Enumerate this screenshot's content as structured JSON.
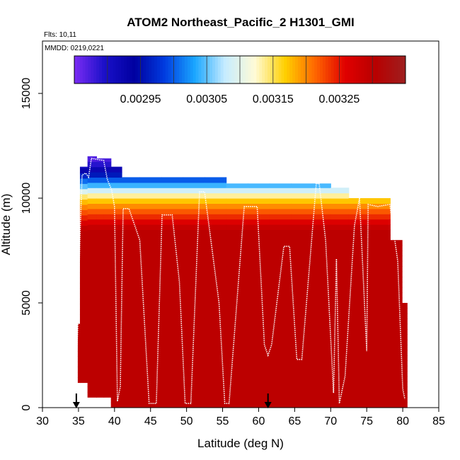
{
  "chart_data": {
    "type": "heatmap",
    "title": "ATOM2 Northeast_Pacific_2 H1301_GMI",
    "subtitle_flights": "Flts: 10,11",
    "subtitle_dates": "MMDD: 0219,0221",
    "xlabel": "Latitude (deg N)",
    "ylabel": "Altitude (m)",
    "xlim": [
      30,
      85
    ],
    "ylim": [
      0,
      17500
    ],
    "x_ticks": [
      "30",
      "35",
      "40",
      "45",
      "50",
      "55",
      "60",
      "65",
      "70",
      "75",
      "80",
      "85"
    ],
    "y_ticks": [
      "0",
      "5000",
      "10000",
      "15000"
    ],
    "colorbar": {
      "min": 0.00285,
      "max": 0.00335,
      "tick_labels": [
        "0.00295",
        "0.00305",
        "0.00315",
        "0.00325"
      ],
      "tick_values": [
        0.00295,
        0.00305,
        0.00315,
        0.00325
      ],
      "colors": [
        "#7b2cf4",
        "#1a10c8",
        "#0000a0",
        "#003ce0",
        "#1aa6ff",
        "#c6ecff",
        "#fffbd6",
        "#ffd000",
        "#ff6600",
        "#e00000",
        "#b80000",
        "#9e1f1f"
      ]
    },
    "columns": [
      {
        "lat": 34.9,
        "bottom": 1200,
        "top": 4000
      },
      {
        "lat": 35.5,
        "bottom": 1200,
        "top": 11500
      },
      {
        "lat": 37.0,
        "bottom": 500,
        "top": 12000
      },
      {
        "lat": 38.0,
        "bottom": 500,
        "top": 11900
      },
      {
        "lat": 39.0,
        "bottom": 500,
        "top": 11900
      },
      {
        "lat": 40.0,
        "bottom": 0,
        "top": 11500
      },
      {
        "lat": 42.0,
        "bottom": 0,
        "top": 11000
      },
      {
        "lat": 45.0,
        "bottom": 0,
        "top": 11000
      },
      {
        "lat": 48.0,
        "bottom": 0,
        "top": 11000
      },
      {
        "lat": 51.0,
        "bottom": 0,
        "top": 11000
      },
      {
        "lat": 54.0,
        "bottom": 0,
        "top": 11000
      },
      {
        "lat": 57.0,
        "bottom": 0,
        "top": 10700
      },
      {
        "lat": 60.0,
        "bottom": 0,
        "top": 10700
      },
      {
        "lat": 63.0,
        "bottom": 0,
        "top": 10700
      },
      {
        "lat": 66.0,
        "bottom": 0,
        "top": 10700
      },
      {
        "lat": 69.0,
        "bottom": 0,
        "top": 10700
      },
      {
        "lat": 71.0,
        "bottom": 0,
        "top": 10500
      },
      {
        "lat": 74.0,
        "bottom": 0,
        "top": 10000
      },
      {
        "lat": 77.0,
        "bottom": 0,
        "top": 10000
      },
      {
        "lat": 79.5,
        "bottom": 0,
        "top": 8000
      },
      {
        "lat": 80.3,
        "bottom": 0,
        "top": 5000
      }
    ],
    "profile_levels": [
      {
        "altitude": 0,
        "value": 0.0033
      },
      {
        "altitude": 8500,
        "value": 0.0033
      },
      {
        "altitude": 9000,
        "value": 0.00325
      },
      {
        "altitude": 9500,
        "value": 0.00321
      },
      {
        "altitude": 10000,
        "value": 0.00316
      },
      {
        "altitude": 10500,
        "value": 0.00306
      },
      {
        "altitude": 11000,
        "value": 0.00298
      },
      {
        "altitude": 11500,
        "value": 0.0029
      },
      {
        "altitude": 12000,
        "value": 0.00286
      }
    ],
    "flight_track": [
      [
        34.6,
        1200
      ],
      [
        34.9,
        3800
      ],
      [
        35.2,
        8000
      ],
      [
        35.5,
        11100
      ],
      [
        36.0,
        11200
      ],
      [
        36.4,
        11000
      ],
      [
        36.8,
        11900
      ],
      [
        38.5,
        11800
      ],
      [
        39.0,
        10900
      ],
      [
        39.6,
        10400
      ],
      [
        40.0,
        9600
      ],
      [
        40.4,
        300
      ],
      [
        40.8,
        1000
      ],
      [
        41.2,
        9500
      ],
      [
        42.0,
        9500
      ],
      [
        43.5,
        8000
      ],
      [
        44.8,
        200
      ],
      [
        45.8,
        200
      ],
      [
        46.6,
        9200
      ],
      [
        48.0,
        9200
      ],
      [
        49.0,
        6000
      ],
      [
        49.8,
        200
      ],
      [
        50.6,
        200
      ],
      [
        51.8,
        10300
      ],
      [
        52.5,
        10300
      ],
      [
        54.5,
        5000
      ],
      [
        55.3,
        200
      ],
      [
        55.9,
        200
      ],
      [
        58.0,
        9600
      ],
      [
        59.8,
        9600
      ],
      [
        60.8,
        3000
      ],
      [
        61.3,
        2500
      ],
      [
        61.8,
        3000
      ],
      [
        63.5,
        7700
      ],
      [
        64.3,
        7700
      ],
      [
        65.3,
        2300
      ],
      [
        66.0,
        2300
      ],
      [
        68.0,
        10700
      ],
      [
        68.4,
        10700
      ],
      [
        69.3,
        8000
      ],
      [
        70.4,
        700
      ],
      [
        70.8,
        7100
      ],
      [
        71.2,
        200
      ],
      [
        72.0,
        1500
      ],
      [
        73.3,
        8700
      ],
      [
        74.0,
        10000
      ],
      [
        75.0,
        2700
      ],
      [
        75.2,
        9700
      ],
      [
        76.5,
        9600
      ],
      [
        78.2,
        9700
      ],
      [
        79.3,
        7000
      ],
      [
        80.0,
        900
      ],
      [
        80.3,
        400
      ]
    ],
    "arrows_at_latitude": [
      34.7,
      61.3
    ]
  }
}
